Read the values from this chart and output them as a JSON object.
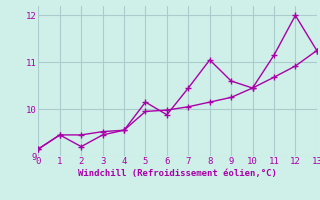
{
  "line1_x": [
    0,
    1,
    2,
    3,
    4,
    5,
    6,
    7,
    8,
    9,
    10,
    11,
    12,
    13
  ],
  "line1_y": [
    9.15,
    9.45,
    9.2,
    9.45,
    9.55,
    10.15,
    9.88,
    10.45,
    11.05,
    10.6,
    10.45,
    11.15,
    12.0,
    11.25
  ],
  "line2_x": [
    0,
    1,
    2,
    3,
    4,
    5,
    6,
    7,
    8,
    9,
    10,
    11,
    12,
    13
  ],
  "line2_y": [
    9.15,
    9.45,
    9.45,
    9.52,
    9.55,
    9.95,
    9.98,
    10.05,
    10.15,
    10.25,
    10.45,
    10.68,
    10.92,
    11.25
  ],
  "color": "#aa00aa",
  "bg_color": "#cef0e8",
  "grid_color": "#aacccc",
  "xlabel": "Windchill (Refroidissement éolien,°C)",
  "xlim": [
    0,
    13
  ],
  "ylim": [
    9.0,
    12.2
  ],
  "xticks": [
    0,
    1,
    2,
    3,
    4,
    5,
    6,
    7,
    8,
    9,
    10,
    11,
    12,
    13
  ],
  "yticks": [
    9,
    10,
    11,
    12
  ],
  "markersize": 4,
  "linewidth": 1.0
}
